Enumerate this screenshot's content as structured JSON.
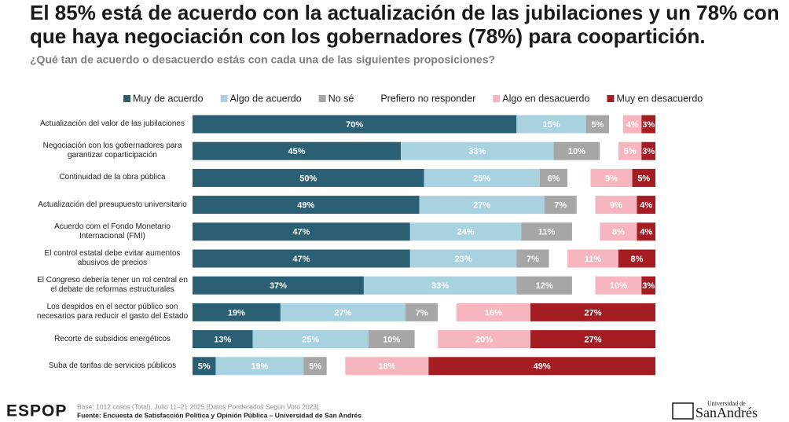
{
  "chart_data": {
    "type": "stacked-bar",
    "title": [
      "El 85% está de acuerdo con la actualización de las jubilaciones y un 78% con",
      "que haya negociación con los gobernadores (78%) para coopartición."
    ],
    "subtitle": "¿Qué tan de acuerdo o desacuerdo estás con cada una de las siguientes proposiciones?",
    "categories": [
      "Actualización del valor de las jubilaciones",
      "Negociación con los gobernadores para\ngarantizar coparticipación",
      "Continuidad de la obra pública",
      "Actualización del presupuesto universitario",
      "Acuerdo com el Fondo Monetario\nInternacional (FMI)",
      "El control estatal debe evitar aumentos\nabusivos de precios",
      "El Congreso debería tener un rol central en\nel debate de reformas estructurales",
      "Los despidos en el sector público son\nnecesarios para reducir el gasto del Estado",
      "Recorte de subsidios energéticos",
      "Suba de tarifas de servicios públicos"
    ],
    "series": [
      {
        "name": "Muy de acuerdo",
        "color": "#2b5f73",
        "values": [
          70,
          45,
          50,
          49,
          47,
          47,
          37,
          19,
          13,
          5
        ],
        "value_labels": [
          "70%",
          "45%",
          "50%",
          "49%",
          "47%",
          "47%",
          "37%",
          "19%",
          "13%",
          "5%"
        ]
      },
      {
        "name": "Algo de acuerdo",
        "color": "#a8d2e0",
        "values": [
          15,
          33,
          25,
          27,
          24,
          23,
          33,
          27,
          25,
          19
        ],
        "value_labels": [
          "15%",
          "33%",
          "25%",
          "27%",
          "24%",
          "23%",
          "33%",
          "27%",
          "25%",
          "19%"
        ]
      },
      {
        "name": "No sé",
        "color": "#a6a6a6",
        "values": [
          5,
          10,
          6,
          7,
          11,
          7,
          12,
          7,
          10,
          5
        ],
        "value_labels": [
          "5%",
          "10%",
          "6%",
          "7%",
          "11%",
          "7%",
          "12%",
          "7%",
          "10%",
          "5%"
        ]
      },
      {
        "name": "Prefiero no responder",
        "color": "#ffffff",
        "values": [
          3,
          4,
          5,
          4,
          6,
          4,
          5,
          4,
          5,
          4
        ]
      },
      {
        "name": "Algo en desacuerdo",
        "color": "#f7b6bf",
        "values": [
          4,
          5,
          9,
          9,
          8,
          11,
          10,
          16,
          20,
          18
        ],
        "value_labels": [
          "4%",
          "5%",
          "9%",
          "9%",
          "8%",
          "11%",
          "10%",
          "16%",
          "20%",
          "18%"
        ]
      },
      {
        "name": "Muy en desacuerdo",
        "color": "#a51c22",
        "values": [
          3,
          3,
          5,
          4,
          4,
          8,
          3,
          27,
          27,
          49
        ],
        "value_labels": [
          "3%",
          "3%",
          "5%",
          "4%",
          "4%",
          "8%",
          "3%",
          "27%",
          "27%",
          "49%"
        ]
      }
    ]
  },
  "footer": {
    "logo": "ESPOP",
    "base": "Base: 1012 casos (Total), Julio 11–21 2025 [Datos Ponderados Según Voto 2023]",
    "source": "Fuente: Encuesta de Satisfacción Política y Opinión Pública – Universidad de San Andrés",
    "university_small": "Universidad de",
    "university": "SanAndrés"
  }
}
